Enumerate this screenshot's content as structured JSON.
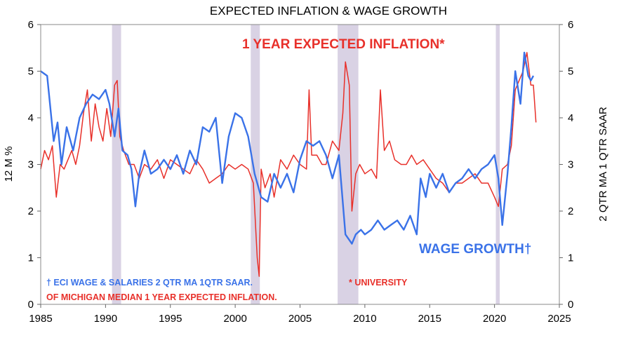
{
  "chart_data": {
    "type": "line",
    "title": "EXPECTED INFLATION & WAGE GROWTH",
    "ylabel_left": "12 M %",
    "ylabel_right": "2 QTR MA 1 QTR SAAR",
    "xlim": [
      1985,
      2025
    ],
    "ylim": [
      0,
      6
    ],
    "x_ticks": [
      "1985",
      "1990",
      "1995",
      "2000",
      "2005",
      "2010",
      "2015",
      "2020",
      "2025"
    ],
    "y_ticks": [
      "0",
      "1",
      "2",
      "3",
      "4",
      "5",
      "6"
    ],
    "grid": false,
    "recessions": [
      [
        1990.5,
        1991.2
      ],
      [
        2001.2,
        2001.9
      ],
      [
        2007.9,
        2009.5
      ],
      [
        2020.1,
        2020.4
      ]
    ],
    "annotations": {
      "inflation_label": "1 YEAR EXPECTED INFLATION*",
      "wage_label": "WAGE GROWTH†",
      "footnote_blue": "† ECI WAGE & SALARIES 2 QTR MA 1QTR SAAR.",
      "footnote_red_1": "* UNIVERSITY",
      "footnote_red_2": "OF MICHIGAN MEDIAN 1 YEAR EXPECTED INFLATION."
    },
    "series": [
      {
        "key": "inflation",
        "color": "#e8302a",
        "x": [
          1985.0,
          1985.3,
          1985.6,
          1985.9,
          1986.2,
          1986.5,
          1986.8,
          1987.1,
          1987.4,
          1987.7,
          1988.0,
          1988.3,
          1988.6,
          1988.9,
          1989.2,
          1989.5,
          1989.8,
          1990.1,
          1990.4,
          1990.7,
          1990.9,
          1991.1,
          1991.4,
          1991.8,
          1992.2,
          1992.6,
          1993.0,
          1993.5,
          1994.0,
          1994.5,
          1995.0,
          1995.5,
          1996.0,
          1996.5,
          1997.0,
          1997.5,
          1998.0,
          1998.5,
          1999.0,
          1999.5,
          2000.0,
          2000.5,
          2001.0,
          2001.4,
          2001.7,
          2001.85,
          2002.0,
          2002.3,
          2002.7,
          2003.0,
          2003.5,
          2004.0,
          2004.5,
          2005.0,
          2005.5,
          2005.7,
          2005.9,
          2006.3,
          2006.7,
          2007.0,
          2007.5,
          2008.0,
          2008.3,
          2008.5,
          2008.8,
          2009.0,
          2009.3,
          2009.6,
          2010.0,
          2010.5,
          2010.9,
          2011.2,
          2011.5,
          2011.9,
          2012.3,
          2012.8,
          2013.2,
          2013.6,
          2014.0,
          2014.5,
          2015.0,
          2015.5,
          2016.0,
          2016.5,
          2017.0,
          2017.5,
          2018.0,
          2018.5,
          2019.0,
          2019.5,
          2020.0,
          2020.3,
          2020.6,
          2021.0,
          2021.3,
          2021.6,
          2021.9,
          2022.2,
          2022.5,
          2022.8,
          2023.0,
          2023.2
        ],
        "values": [
          2.9,
          3.3,
          3.1,
          3.4,
          2.3,
          3.0,
          2.9,
          3.1,
          3.3,
          3.0,
          3.4,
          4.1,
          4.6,
          3.5,
          4.3,
          3.8,
          3.5,
          4.2,
          3.6,
          4.7,
          4.8,
          3.6,
          3.3,
          3.0,
          3.0,
          2.7,
          3.0,
          2.9,
          3.1,
          2.7,
          3.1,
          3.0,
          2.9,
          2.8,
          3.1,
          2.9,
          2.6,
          2.7,
          2.8,
          3.0,
          2.9,
          3.0,
          2.9,
          2.6,
          1.0,
          0.6,
          2.9,
          2.5,
          2.8,
          2.3,
          3.1,
          2.9,
          3.2,
          3.0,
          2.9,
          4.6,
          3.2,
          3.2,
          3.0,
          3.0,
          3.5,
          3.3,
          4.1,
          5.2,
          4.7,
          2.0,
          2.8,
          3.0,
          2.8,
          2.9,
          2.7,
          4.6,
          3.3,
          3.5,
          3.1,
          3.0,
          3.0,
          3.2,
          3.0,
          3.1,
          2.9,
          2.7,
          2.6,
          2.4,
          2.6,
          2.6,
          2.7,
          2.8,
          2.6,
          2.6,
          2.3,
          2.1,
          2.9,
          3.0,
          3.4,
          4.6,
          4.8,
          5.0,
          5.4,
          4.7,
          4.7,
          3.9
        ]
      },
      {
        "key": "wage",
        "color": "#3a72e8",
        "x": [
          1985.0,
          1985.5,
          1986.0,
          1986.3,
          1986.6,
          1987.0,
          1987.5,
          1988.0,
          1988.5,
          1989.0,
          1989.5,
          1990.0,
          1990.3,
          1990.7,
          1991.0,
          1991.3,
          1991.7,
          1992.0,
          1992.3,
          1992.6,
          1993.0,
          1993.5,
          1994.0,
          1994.5,
          1995.0,
          1995.5,
          1996.0,
          1996.5,
          1997.0,
          1997.5,
          1998.0,
          1998.5,
          1999.0,
          1999.5,
          2000.0,
          2000.5,
          2001.0,
          2001.5,
          2002.0,
          2002.5,
          2003.0,
          2003.5,
          2004.0,
          2004.5,
          2005.0,
          2005.5,
          2006.0,
          2006.5,
          2007.0,
          2007.5,
          2008.0,
          2008.5,
          2009.0,
          2009.3,
          2009.7,
          2010.0,
          2010.5,
          2011.0,
          2011.5,
          2012.0,
          2012.5,
          2013.0,
          2013.5,
          2014.0,
          2014.3,
          2014.7,
          2015.0,
          2015.5,
          2016.0,
          2016.5,
          2017.0,
          2017.5,
          2018.0,
          2018.5,
          2019.0,
          2019.5,
          2020.0,
          2020.3,
          2020.6,
          2021.0,
          2021.3,
          2021.6,
          2022.0,
          2022.3,
          2022.6,
          2022.8,
          2023.0
        ],
        "values": [
          5.0,
          4.9,
          3.5,
          3.9,
          3.0,
          3.8,
          3.3,
          4.0,
          4.3,
          4.5,
          4.4,
          4.6,
          4.3,
          3.6,
          4.2,
          3.3,
          3.2,
          2.9,
          2.1,
          2.8,
          3.3,
          2.8,
          2.9,
          3.1,
          2.9,
          3.2,
          2.8,
          3.3,
          3.0,
          3.8,
          3.7,
          4.0,
          2.6,
          3.6,
          4.1,
          4.0,
          3.6,
          2.8,
          2.3,
          2.2,
          2.8,
          2.5,
          2.8,
          2.4,
          3.1,
          3.5,
          3.4,
          3.5,
          3.2,
          2.7,
          3.2,
          1.5,
          1.3,
          1.5,
          1.6,
          1.5,
          1.6,
          1.8,
          1.6,
          1.7,
          1.8,
          1.6,
          1.9,
          1.5,
          2.7,
          2.3,
          2.8,
          2.5,
          2.8,
          2.4,
          2.6,
          2.7,
          2.9,
          2.7,
          2.9,
          3.0,
          3.2,
          2.7,
          1.7,
          2.8,
          3.8,
          5.0,
          4.3,
          5.4,
          4.9,
          4.8,
          4.9
        ]
      }
    ]
  }
}
